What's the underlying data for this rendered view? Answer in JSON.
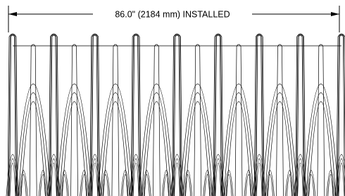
{
  "dimension": {
    "label": "86.0\" (2184 mm) INSTALLED"
  }
}
